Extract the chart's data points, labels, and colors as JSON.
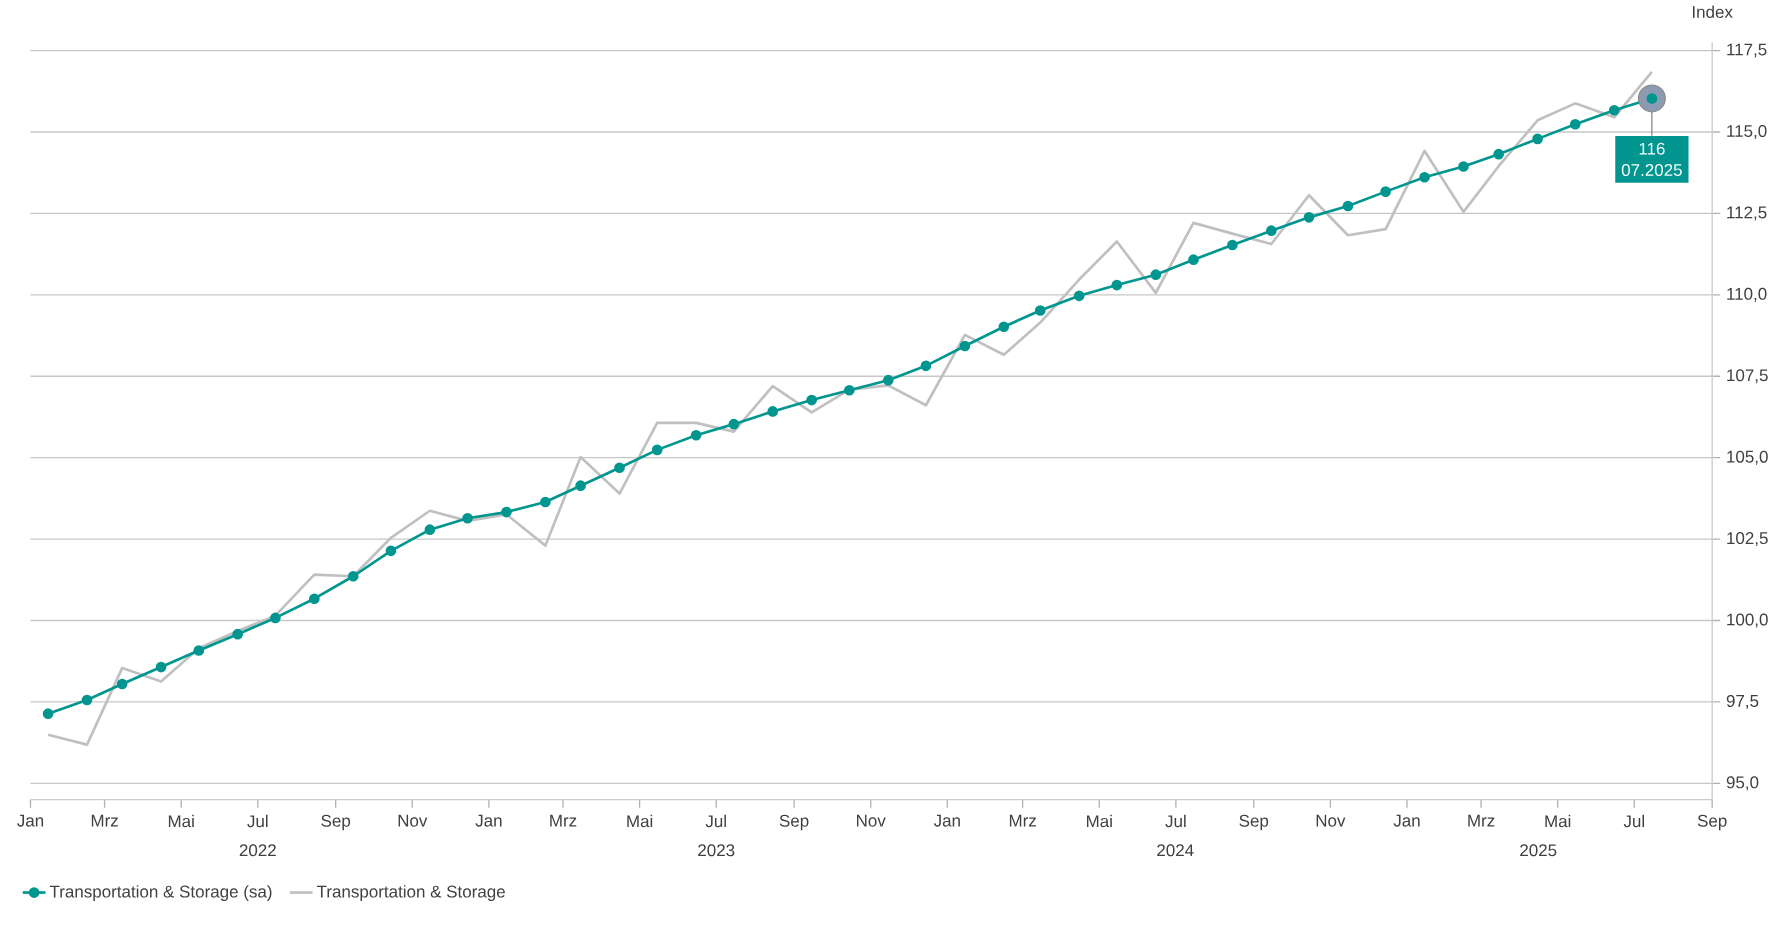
{
  "chart_data": {
    "type": "line",
    "x": [
      "2022-01-15",
      "2022-02-15",
      "2022-03-15",
      "2022-04-15",
      "2022-05-15",
      "2022-06-15",
      "2022-07-15",
      "2022-08-15",
      "2022-09-15",
      "2022-10-15",
      "2022-11-15",
      "2022-12-15",
      "2023-01-15",
      "2023-02-15",
      "2023-03-15",
      "2023-04-15",
      "2023-05-15",
      "2023-06-15",
      "2023-07-15",
      "2023-08-15",
      "2023-09-15",
      "2023-10-15",
      "2023-11-15",
      "2023-12-15",
      "2024-01-15",
      "2024-02-15",
      "2024-03-15",
      "2024-04-15",
      "2024-05-15",
      "2024-06-15",
      "2024-07-15",
      "2024-08-15",
      "2024-09-15",
      "2024-10-15",
      "2024-11-15",
      "2024-12-15",
      "2025-01-15",
      "2025-02-15",
      "2025-03-15",
      "2025-04-15",
      "2025-05-15",
      "2025-06-15",
      "2025-07-15"
    ],
    "series": [
      {
        "name": "Transportation & Storage (sa)",
        "color": "#00968f",
        "marker": "circle",
        "values": [
          97.14,
          97.56,
          98.05,
          98.57,
          99.08,
          99.58,
          100.08,
          100.67,
          101.36,
          102.14,
          102.79,
          103.14,
          103.33,
          103.64,
          104.14,
          104.69,
          105.24,
          105.69,
          106.03,
          106.42,
          106.77,
          107.07,
          107.38,
          107.82,
          108.43,
          109.02,
          109.52,
          109.97,
          110.3,
          110.62,
          111.08,
          111.53,
          111.97,
          112.38,
          112.73,
          113.17,
          113.61,
          113.94,
          114.32,
          114.79,
          115.24,
          115.67,
          116.03
        ]
      },
      {
        "name": "Transportation & Storage",
        "color": "#c0c0c0",
        "marker": "none",
        "values": [
          96.49,
          96.19,
          98.54,
          98.13,
          99.15,
          99.68,
          100.15,
          101.41,
          101.36,
          102.54,
          103.37,
          103.06,
          103.26,
          102.3,
          105.02,
          103.9,
          106.07,
          106.07,
          105.8,
          107.2,
          106.39,
          107.09,
          107.22,
          106.61,
          108.77,
          108.16,
          109.15,
          110.47,
          111.64,
          110.06,
          112.21,
          111.88,
          111.56,
          113.06,
          111.83,
          112.02,
          114.42,
          112.55,
          113.95,
          115.36,
          115.88,
          115.45,
          116.85
        ]
      }
    ],
    "xlim": [
      "2022-01",
      "2025-09"
    ],
    "xticks": [
      {
        "value": "2022-01",
        "label": "Jan"
      },
      {
        "value": "2022-03",
        "label": "Mrz"
      },
      {
        "value": "2022-05",
        "label": "Mai"
      },
      {
        "value": "2022-07",
        "label": "Jul"
      },
      {
        "value": "2022-09",
        "label": "Sep"
      },
      {
        "value": "2022-11",
        "label": "Nov"
      },
      {
        "value": "2023-01",
        "label": "Jan"
      },
      {
        "value": "2023-03",
        "label": "Mrz"
      },
      {
        "value": "2023-05",
        "label": "Mai"
      },
      {
        "value": "2023-07",
        "label": "Jul"
      },
      {
        "value": "2023-09",
        "label": "Sep"
      },
      {
        "value": "2023-11",
        "label": "Nov"
      },
      {
        "value": "2024-01",
        "label": "Jan"
      },
      {
        "value": "2024-03",
        "label": "Mrz"
      },
      {
        "value": "2024-05",
        "label": "Mai"
      },
      {
        "value": "2024-07",
        "label": "Jul"
      },
      {
        "value": "2024-09",
        "label": "Sep"
      },
      {
        "value": "2024-11",
        "label": "Nov"
      },
      {
        "value": "2025-01",
        "label": "Jan"
      },
      {
        "value": "2025-03",
        "label": "Mrz"
      },
      {
        "value": "2025-05",
        "label": "Mai"
      },
      {
        "value": "2025-07",
        "label": "Jul"
      },
      {
        "value": "2025-09",
        "label": "Sep"
      }
    ],
    "ylim": [
      94.5,
      117.75
    ],
    "yticks": [
      {
        "value": 95,
        "label": "95,0"
      },
      {
        "value": 97.5,
        "label": "97,5"
      },
      {
        "value": 100,
        "label": "100,0"
      },
      {
        "value": 102.5,
        "label": "102,5"
      },
      {
        "value": 105,
        "label": "105,0"
      },
      {
        "value": 107.5,
        "label": "107,5"
      },
      {
        "value": 110,
        "label": "110,0"
      },
      {
        "value": 112.5,
        "label": "112,5"
      },
      {
        "value": 115,
        "label": "115,0"
      },
      {
        "value": 117.5,
        "label": "117,5"
      }
    ],
    "ylabel": "Index",
    "grid": "y",
    "legend": "bottom left",
    "annotations": [
      {
        "text": "116",
        "x": "2025-07-15",
        "y": 116.03
      },
      "07.2025",
      "2022",
      "2023",
      "2024",
      "2025"
    ]
  }
}
